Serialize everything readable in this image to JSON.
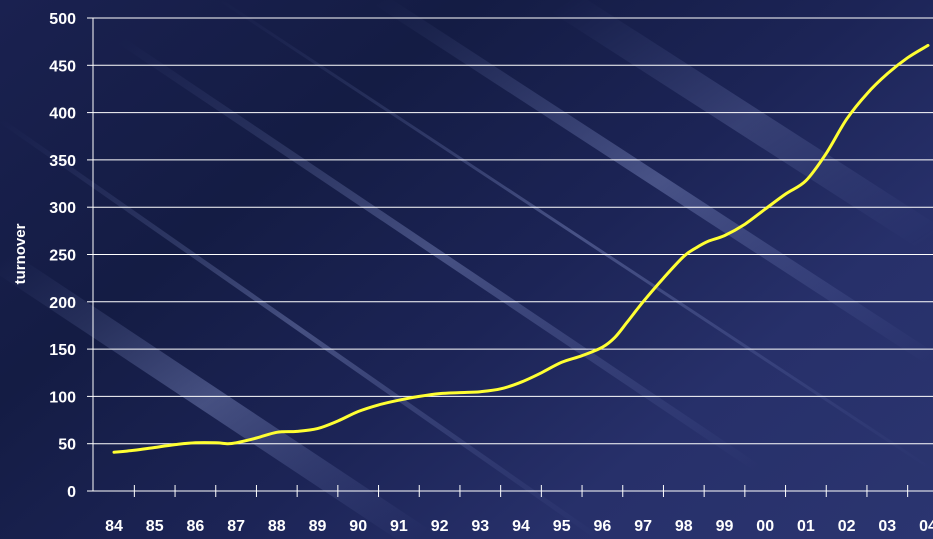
{
  "chart_data": {
    "type": "line",
    "title": "",
    "xlabel": "",
    "ylabel": "turnover",
    "ylim": [
      0,
      500
    ],
    "yticks": [
      0,
      50,
      100,
      150,
      200,
      250,
      300,
      350,
      400,
      450,
      500
    ],
    "grid": true,
    "legend": "none",
    "categories": [
      "84",
      "85",
      "86",
      "87",
      "88",
      "89",
      "90",
      "91",
      "92",
      "93",
      "94",
      "95",
      "96",
      "97",
      "98",
      "99",
      "00",
      "01",
      "02",
      "03",
      "04"
    ],
    "series": [
      {
        "color": "#ffff33",
        "x": [
          84,
          84.5,
          85,
          85.5,
          86,
          86.5,
          86.8,
          87,
          87.5,
          88,
          88.5,
          89,
          89.5,
          90,
          90.5,
          91,
          91.5,
          92,
          92.5,
          93,
          93.5,
          94,
          94.5,
          95,
          95.5,
          96,
          96.3,
          96.6,
          97,
          97.5,
          98,
          98.3,
          98.6,
          99,
          99.5,
          100,
          100.5,
          101,
          101.5,
          102,
          102.5,
          103,
          103.5,
          104
        ],
        "y": [
          41,
          43,
          46,
          49,
          51,
          51,
          50,
          51,
          56,
          62,
          63,
          66,
          74,
          84,
          91,
          96,
          100,
          103,
          104,
          105,
          108,
          115,
          125,
          136,
          143,
          152,
          162,
          178,
          200,
          225,
          248,
          257,
          264,
          270,
          282,
          298,
          314,
          328,
          357,
          393,
          420,
          441,
          458,
          471
        ]
      }
    ]
  }
}
